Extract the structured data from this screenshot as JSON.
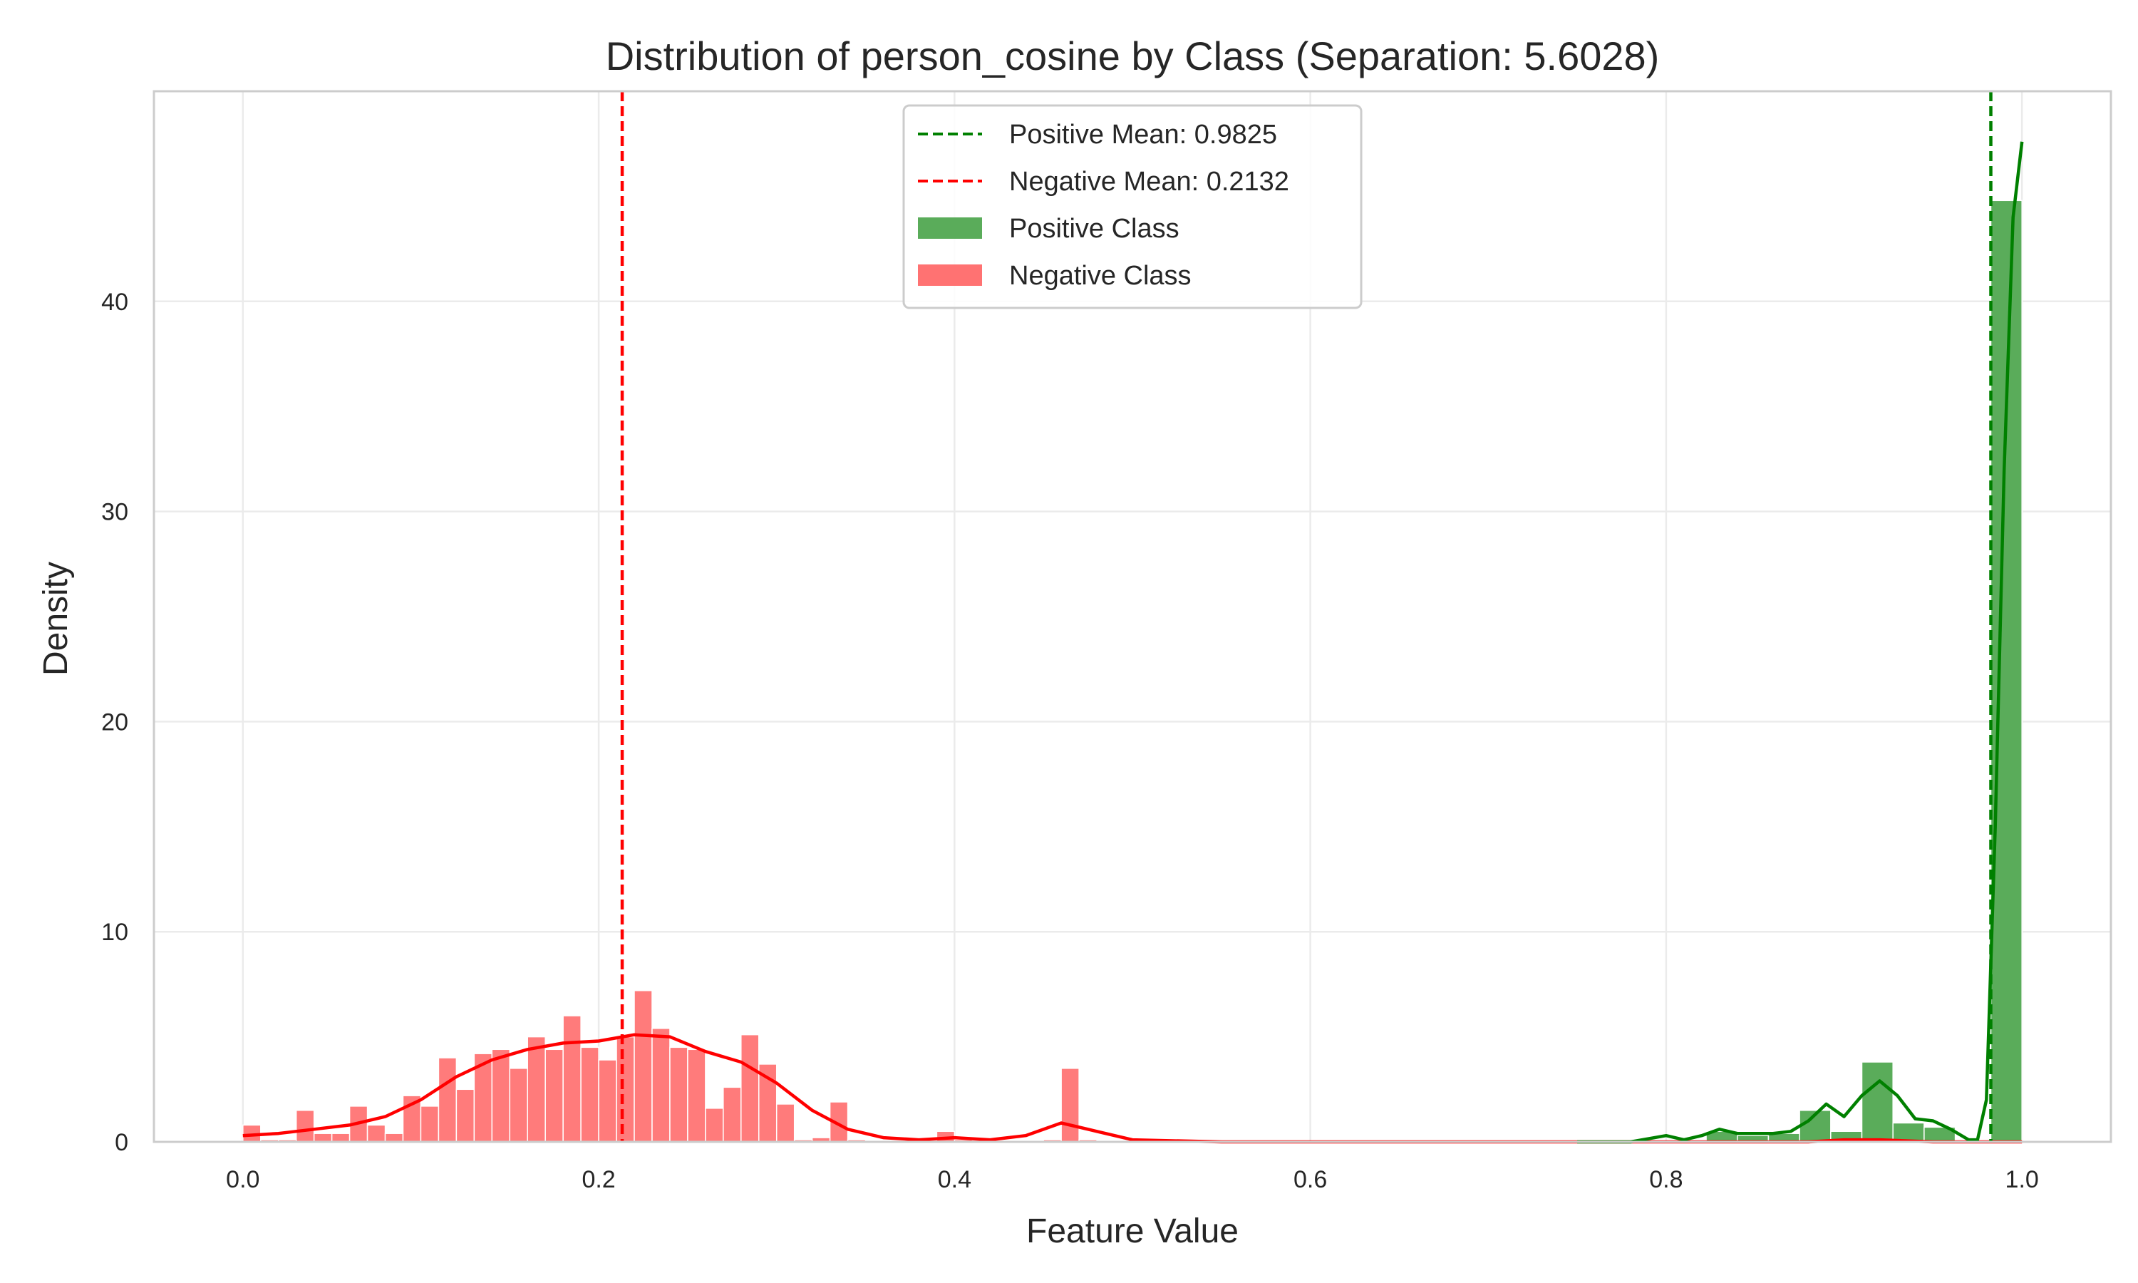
{
  "chart_data": {
    "type": "histogram",
    "title": "Distribution of person_cosine by Class (Separation: 5.6028)",
    "xlabel": "Feature Value",
    "ylabel": "Density",
    "xlim": [
      -0.05,
      1.05
    ],
    "ylim": [
      0,
      50
    ],
    "xticks": [
      0.0,
      0.2,
      0.4,
      0.6,
      0.8,
      1.0
    ],
    "xtick_labels": [
      "0.0",
      "0.2",
      "0.4",
      "0.6",
      "0.8",
      "1.0"
    ],
    "yticks": [
      0,
      10,
      20,
      30,
      40
    ],
    "ytick_labels": [
      "0",
      "10",
      "20",
      "30",
      "40"
    ],
    "grid": true,
    "legend_position": "upper-center",
    "legend": [
      {
        "label": "Positive Mean: 0.9825",
        "kind": "dashed-line",
        "color": "#008000"
      },
      {
        "label": "Negative Mean: 0.2132",
        "kind": "dashed-line",
        "color": "#ff0000"
      },
      {
        "label": "Positive Class",
        "kind": "patch",
        "color": "#5aac5a"
      },
      {
        "label": "Negative Class",
        "kind": "patch",
        "color": "#ff7272"
      }
    ],
    "series": [
      {
        "name": "Negative Class",
        "color": "#ff7b7b",
        "kde_color": "#ff0000",
        "mean": 0.2132,
        "bin_width": 0.01,
        "bins": [
          [
            0.0,
            0.8
          ],
          [
            0.01,
            0.1
          ],
          [
            0.02,
            0.1
          ],
          [
            0.03,
            1.5
          ],
          [
            0.04,
            0.4
          ],
          [
            0.05,
            0.4
          ],
          [
            0.06,
            1.7
          ],
          [
            0.07,
            0.8
          ],
          [
            0.08,
            0.4
          ],
          [
            0.09,
            2.2
          ],
          [
            0.1,
            1.7
          ],
          [
            0.11,
            4.0
          ],
          [
            0.12,
            2.5
          ],
          [
            0.13,
            4.2
          ],
          [
            0.14,
            4.4
          ],
          [
            0.15,
            3.5
          ],
          [
            0.16,
            5.0
          ],
          [
            0.17,
            4.4
          ],
          [
            0.18,
            6.0
          ],
          [
            0.19,
            4.5
          ],
          [
            0.2,
            3.9
          ],
          [
            0.21,
            5.0
          ],
          [
            0.22,
            7.2
          ],
          [
            0.23,
            5.4
          ],
          [
            0.24,
            4.5
          ],
          [
            0.25,
            4.4
          ],
          [
            0.26,
            1.6
          ],
          [
            0.27,
            2.6
          ],
          [
            0.28,
            5.1
          ],
          [
            0.29,
            3.7
          ],
          [
            0.3,
            1.8
          ],
          [
            0.31,
            0.1
          ],
          [
            0.32,
            0.2
          ],
          [
            0.33,
            1.9
          ],
          [
            0.34,
            0.1
          ],
          [
            0.35,
            0.0
          ],
          [
            0.36,
            0.0
          ],
          [
            0.37,
            0.0
          ],
          [
            0.38,
            0.0
          ],
          [
            0.39,
            0.5
          ],
          [
            0.4,
            0.1
          ],
          [
            0.41,
            0.0
          ],
          [
            0.42,
            0.0
          ],
          [
            0.43,
            0.0
          ],
          [
            0.44,
            0.0
          ],
          [
            0.45,
            0.1
          ],
          [
            0.46,
            3.5
          ],
          [
            0.47,
            0.1
          ],
          [
            0.9,
            0.2
          ],
          [
            0.91,
            0.1
          ],
          [
            0.92,
            0.1
          ]
        ],
        "kde": [
          [
            0.0,
            0.3
          ],
          [
            0.02,
            0.4
          ],
          [
            0.04,
            0.6
          ],
          [
            0.06,
            0.8
          ],
          [
            0.08,
            1.2
          ],
          [
            0.1,
            2.0
          ],
          [
            0.12,
            3.1
          ],
          [
            0.14,
            3.9
          ],
          [
            0.16,
            4.4
          ],
          [
            0.18,
            4.7
          ],
          [
            0.2,
            4.8
          ],
          [
            0.22,
            5.1
          ],
          [
            0.24,
            5.0
          ],
          [
            0.26,
            4.3
          ],
          [
            0.28,
            3.8
          ],
          [
            0.3,
            2.8
          ],
          [
            0.32,
            1.5
          ],
          [
            0.34,
            0.6
          ],
          [
            0.36,
            0.2
          ],
          [
            0.38,
            0.1
          ],
          [
            0.4,
            0.2
          ],
          [
            0.42,
            0.1
          ],
          [
            0.44,
            0.3
          ],
          [
            0.46,
            0.9
          ],
          [
            0.48,
            0.5
          ],
          [
            0.5,
            0.1
          ],
          [
            0.55,
            0.0
          ],
          [
            0.88,
            0.0
          ],
          [
            0.9,
            0.1
          ],
          [
            0.92,
            0.1
          ],
          [
            0.95,
            0.0
          ],
          [
            1.0,
            0.0
          ]
        ]
      },
      {
        "name": "Positive Class",
        "color": "#5aac5a",
        "kde_color": "#008000",
        "mean": 0.9825,
        "bin_width": 0.0175,
        "bins": [
          [
            0.8225,
            0.5
          ],
          [
            0.84,
            0.3
          ],
          [
            0.8575,
            0.4
          ],
          [
            0.875,
            1.5
          ],
          [
            0.8925,
            0.5
          ],
          [
            0.91,
            3.8
          ],
          [
            0.9275,
            0.9
          ],
          [
            0.945,
            0.7
          ],
          [
            0.9825,
            44.8
          ]
        ],
        "kde": [
          [
            0.75,
            0.0
          ],
          [
            0.78,
            0.0
          ],
          [
            0.8,
            0.3
          ],
          [
            0.81,
            0.1
          ],
          [
            0.82,
            0.3
          ],
          [
            0.83,
            0.6
          ],
          [
            0.84,
            0.4
          ],
          [
            0.86,
            0.4
          ],
          [
            0.87,
            0.5
          ],
          [
            0.88,
            1.0
          ],
          [
            0.89,
            1.8
          ],
          [
            0.9,
            1.2
          ],
          [
            0.91,
            2.2
          ],
          [
            0.92,
            2.9
          ],
          [
            0.93,
            2.2
          ],
          [
            0.94,
            1.1
          ],
          [
            0.95,
            1.0
          ],
          [
            0.96,
            0.6
          ],
          [
            0.97,
            0.1
          ],
          [
            0.975,
            0.1
          ],
          [
            0.98,
            2.0
          ],
          [
            0.985,
            15.0
          ],
          [
            0.99,
            32.0
          ],
          [
            0.995,
            44.0
          ],
          [
            1.0,
            47.6
          ]
        ]
      }
    ]
  }
}
